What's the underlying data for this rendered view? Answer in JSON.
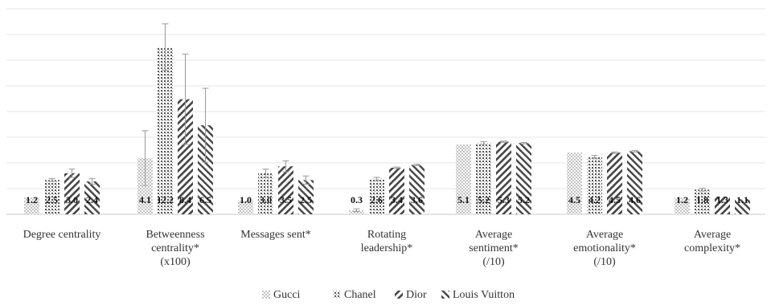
{
  "chart_data": {
    "type": "bar",
    "categories": [
      "Degree centrality",
      "Betweenness centrality* (x100)",
      "Messages sent*",
      "Rotating leadership*",
      "Average sentiment* (/10)",
      "Average emotionality* (/10)",
      "Average complexity*"
    ],
    "category_lines": [
      [
        "Degree centrality"
      ],
      [
        "Betweenness",
        "centrality*",
        "(x100)"
      ],
      [
        "Messages sent*"
      ],
      [
        "Rotating",
        "leadership*"
      ],
      [
        "Average",
        "sentiment*",
        "(/10)"
      ],
      [
        "Average",
        "emotionality*",
        "(/10)"
      ],
      [
        "Average",
        "complexity*"
      ]
    ],
    "series": [
      {
        "name": "Gucci",
        "pattern": "dots",
        "values": [
          1.2,
          4.1,
          1.0,
          0.3,
          5.1,
          4.5,
          1.2
        ],
        "labels": [
          "1.2",
          "4.1",
          "1.0",
          "0.3",
          "5.1",
          "4.5",
          "1.2"
        ],
        "error": [
          0,
          2.0,
          0,
          0.1,
          0,
          0,
          0
        ]
      },
      {
        "name": "Chanel",
        "pattern": "grid",
        "values": [
          2.5,
          12.2,
          3.0,
          2.6,
          5.2,
          4.2,
          1.8
        ],
        "labels": [
          "2.5",
          "12.2",
          "3.0",
          "2.6",
          "5.2",
          "4.2",
          "1.8"
        ],
        "error": [
          0.1,
          1.7,
          0.3,
          0.1,
          0.1,
          0.1,
          0.1
        ]
      },
      {
        "name": "Dior",
        "pattern": "fwd-diag",
        "values": [
          3.0,
          8.4,
          3.5,
          3.4,
          5.3,
          4.5,
          1.3
        ],
        "labels": [
          "3.0",
          "8.4",
          "3.5",
          "3.4",
          "5.3",
          "4.5",
          "1.3"
        ],
        "error": [
          0.3,
          3.3,
          0.4,
          0.05,
          0.05,
          0.05,
          0
        ]
      },
      {
        "name": "Louis Vuitton",
        "pattern": "back-diag",
        "values": [
          2.4,
          6.5,
          2.5,
          3.6,
          5.2,
          4.6,
          1.1
        ],
        "labels": [
          "2.4",
          "6.5",
          "2.5",
          "3.6",
          "5.2",
          "4.6",
          "1.1"
        ],
        "error": [
          0.2,
          2.7,
          0.3,
          0.05,
          0.05,
          0.05,
          0
        ]
      }
    ],
    "ylim": [
      0,
      15
    ],
    "grid": true,
    "legend_position": "bottom-center",
    "title": "",
    "xlabel": "",
    "ylabel": ""
  }
}
